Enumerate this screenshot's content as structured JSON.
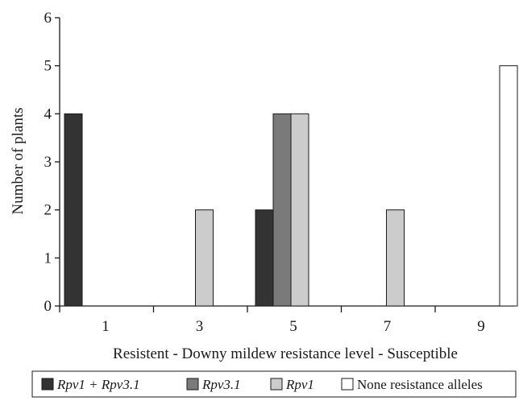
{
  "chart_data": {
    "type": "bar",
    "title": "",
    "xlabel": "Resistent - Downy mildew resistance level - Susceptible",
    "ylabel": "Number of plants",
    "categories": [
      "1",
      "3",
      "5",
      "7",
      "9"
    ],
    "ylim": [
      0,
      6
    ],
    "yticks": [
      "0",
      "1",
      "2",
      "3",
      "4",
      "5",
      "6"
    ],
    "grid": false,
    "legend_position": "bottom",
    "series": [
      {
        "name": "Rpv1 + Rpv3.1",
        "italic": true,
        "color": "#333333",
        "values": [
          4,
          0,
          2,
          0,
          0
        ]
      },
      {
        "name": "Rpv3.1",
        "italic": true,
        "color": "#7a7a7a",
        "values": [
          0,
          0,
          4,
          0,
          0
        ]
      },
      {
        "name": "Rpv1",
        "italic": true,
        "color": "#cccccc",
        "values": [
          0,
          2,
          4,
          2,
          0
        ]
      },
      {
        "name": "None resistance alleles",
        "italic": false,
        "color": "#ffffff",
        "values": [
          0,
          0,
          0,
          0,
          5
        ]
      }
    ]
  }
}
